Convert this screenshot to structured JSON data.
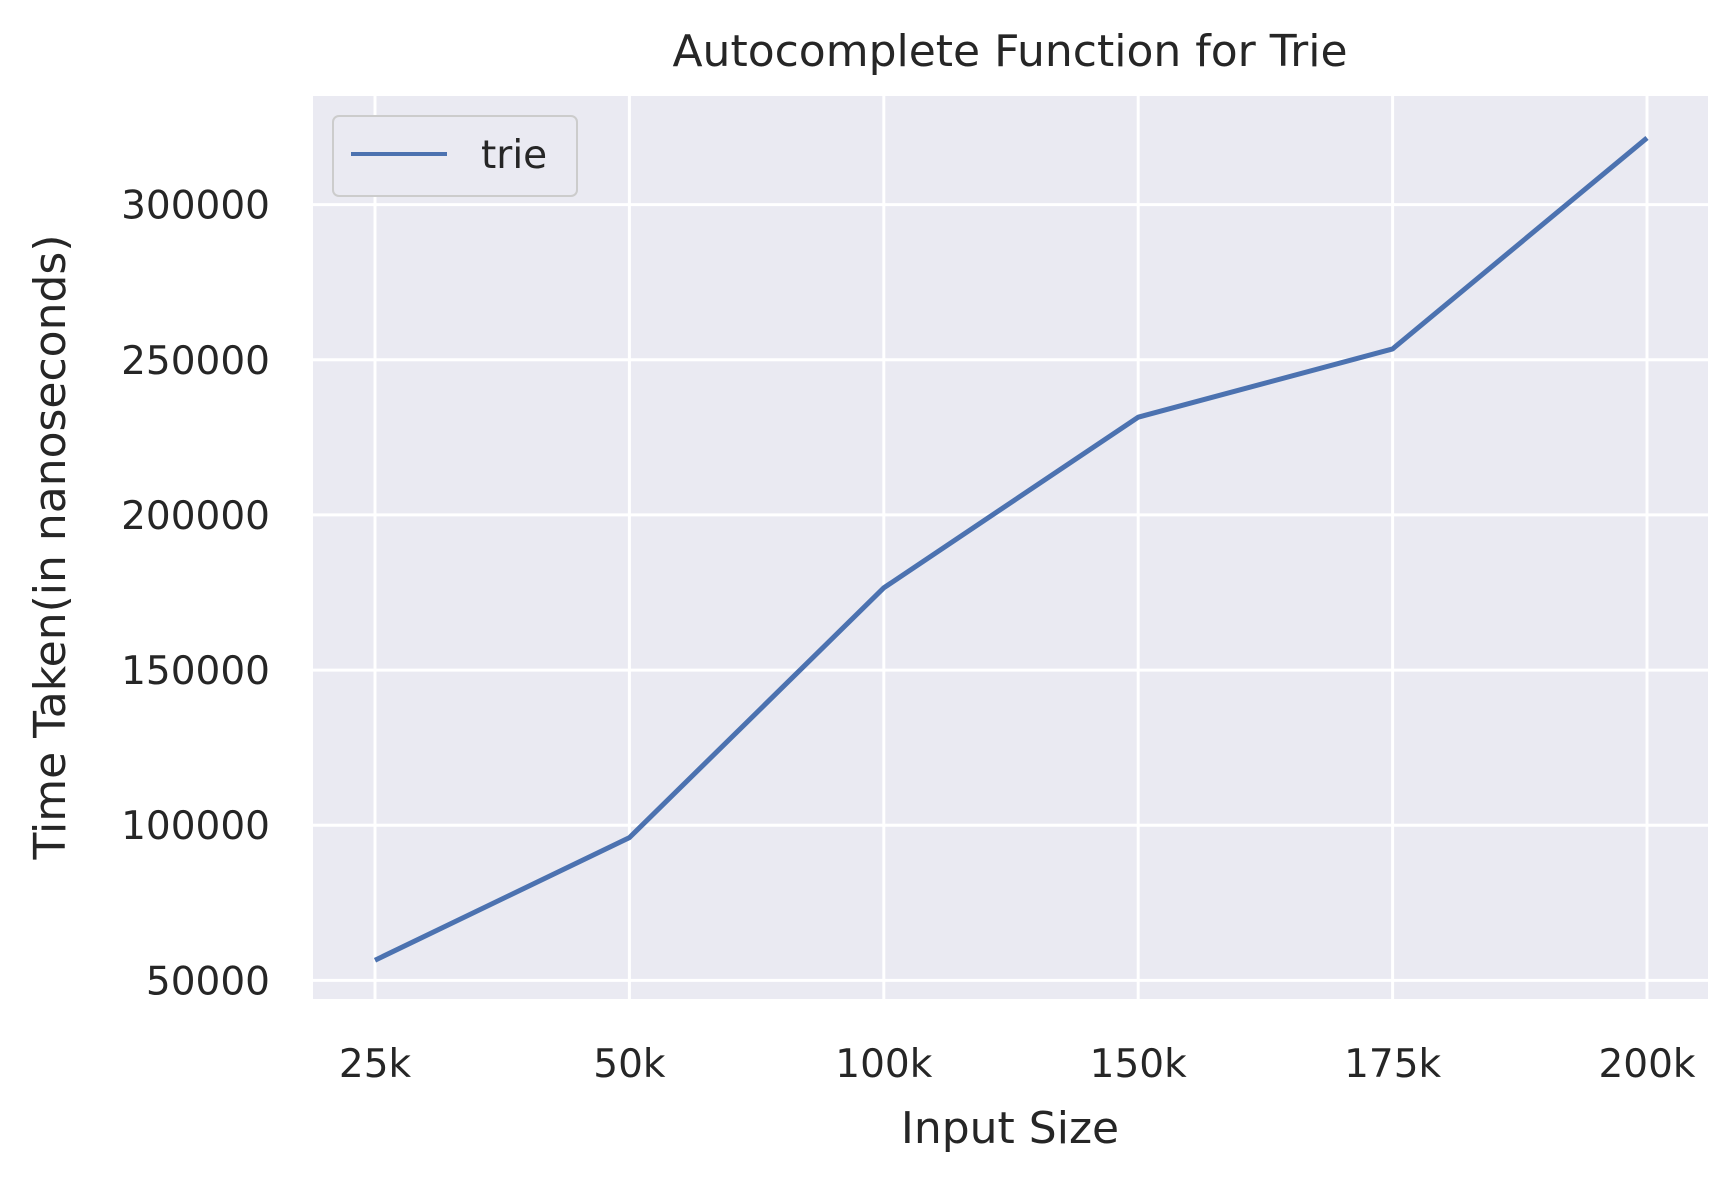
{
  "chart_data": {
    "type": "line",
    "title": "Autocomplete Function for Trie",
    "xlabel": "Input Size",
    "ylabel": "Time Taken(in nanoseconds)",
    "categories": [
      "25k",
      "50k",
      "100k",
      "150k",
      "175k",
      "200k"
    ],
    "series": [
      {
        "name": "trie",
        "values": [
          56500,
          96000,
          176500,
          231500,
          253500,
          321500
        ],
        "color": "#4c72b0"
      }
    ],
    "yticks": [
      50000,
      100000,
      150000,
      200000,
      250000,
      300000
    ],
    "ylim": [
      44000,
      335000
    ],
    "grid": true,
    "legend_position": "top-left",
    "background_color": "#eaeaf2",
    "grid_color": "#ffffff"
  }
}
